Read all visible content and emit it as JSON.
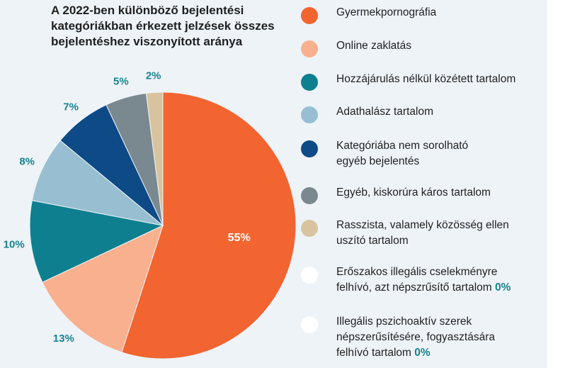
{
  "chart_data": {
    "type": "pie",
    "title_lines": [
      "A 2022-ben különböző bejelentési",
      "kategóriákban érkezett jelzések összes",
      "bejelentéshez viszonyított aránya"
    ],
    "slices": [
      {
        "name": "Gyermekpornográfia",
        "value": 55,
        "label": "55%",
        "color": "#f26430",
        "label_inside": true
      },
      {
        "name": "Online zaklatás",
        "value": 13,
        "label": "13%",
        "color": "#f9b08e"
      },
      {
        "name": "Hozzájárulás nélkül közétett tartalom",
        "value": 10,
        "label": "10%",
        "color": "#0e7f8e"
      },
      {
        "name": "Adathalász tartalom",
        "value": 8,
        "label": "8%",
        "color": "#97bfd1"
      },
      {
        "name": "Kategóriába nem sorolható egyéb bejelentés",
        "value": 7,
        "label": "7%",
        "color": "#0d4a86"
      },
      {
        "name": "Egyéb, kiskorúra káros tartalom",
        "value": 5,
        "label": "5%",
        "color": "#7a8890"
      },
      {
        "name": "Rasszista, valamely közösség ellen uszító tartalom",
        "value": 2,
        "label": "2%",
        "color": "#d7c49f"
      }
    ],
    "legend": [
      {
        "lines": [
          "Gyermekpornográfia"
        ],
        "color": "#f26430"
      },
      {
        "lines": [
          "Online zaklatás"
        ],
        "color": "#f9b08e"
      },
      {
        "lines": [
          "Hozzájárulás nélkül közétett tartalom"
        ],
        "color": "#0e7f8e"
      },
      {
        "lines": [
          "Adathalász tartalom"
        ],
        "color": "#97bfd1"
      },
      {
        "lines": [
          "Kategóriába nem sorolható",
          "egyéb bejelentés"
        ],
        "color": "#0d4a86"
      },
      {
        "lines": [
          "Egyéb, kiskorúra káros tartalom"
        ],
        "color": "#7a8890"
      },
      {
        "lines": [
          "Rasszista, valamely közösség ellen",
          "uszító tartalom"
        ],
        "color": "#d7c49f"
      },
      {
        "lines": [
          "Erőszakos illegális cselekményre",
          "felhívó, azt népszrűsítő tartalom"
        ],
        "pct": "0%",
        "color": "#ffffff"
      },
      {
        "lines": [
          "Illegális pszichoaktív szerek",
          "népszerűsítésére, fogyasztására",
          "felhívó tartalom"
        ],
        "pct": "0%",
        "color": "#ffffff"
      }
    ]
  }
}
